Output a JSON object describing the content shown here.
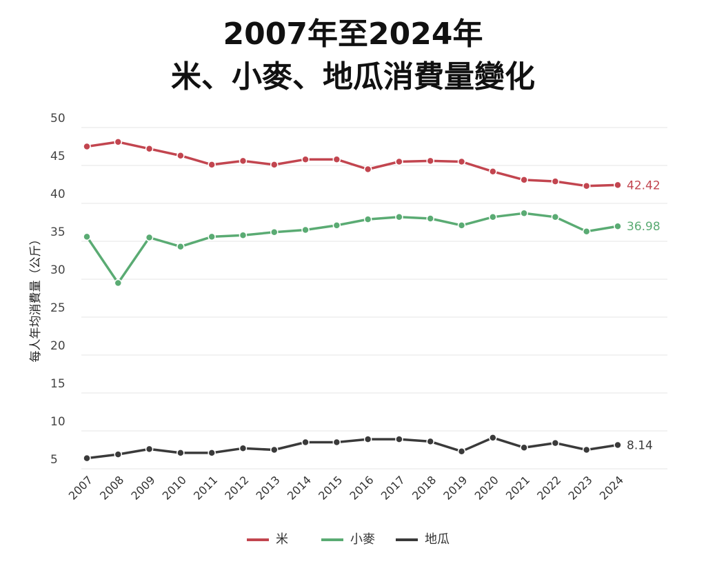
{
  "chart_data": {
    "type": "line",
    "title": [
      "2007年至2024年",
      "米、小麥、地瓜消費量變化"
    ],
    "y_label": "每人年均消費量（公斤）",
    "categories": [
      "2007",
      "2008",
      "2009",
      "2010",
      "2011",
      "2012",
      "2013",
      "2014",
      "2015",
      "2016",
      "2017",
      "2018",
      "2019",
      "2020",
      "2021",
      "2022",
      "2023",
      "2024"
    ],
    "series": [
      {
        "name": "米",
        "color": "#c2454f",
        "values": [
          47.5,
          48.1,
          47.2,
          46.3,
          45.1,
          45.6,
          45.1,
          45.8,
          45.8,
          44.5,
          45.5,
          45.6,
          45.5,
          44.2,
          43.1,
          42.9,
          42.3,
          42.42
        ]
      },
      {
        "name": "小麥",
        "color": "#5aab73",
        "values": [
          35.6,
          29.5,
          35.5,
          34.3,
          35.6,
          35.8,
          36.2,
          36.5,
          37.1,
          37.9,
          38.2,
          38.0,
          37.1,
          38.2,
          38.7,
          38.2,
          36.3,
          36.98
        ]
      },
      {
        "name": "地瓜",
        "color": "#3a3a3a",
        "values": [
          6.4,
          6.9,
          7.6,
          7.1,
          7.1,
          7.7,
          7.5,
          8.5,
          8.5,
          8.9,
          8.9,
          8.6,
          7.3,
          9.1,
          7.8,
          8.4,
          7.5,
          8.14
        ]
      }
    ],
    "ylim": [
      5,
      50
    ],
    "yticks": [
      5,
      10,
      15,
      20,
      25,
      30,
      35,
      40,
      45,
      50
    ],
    "grid": true,
    "legend": "bottom"
  }
}
